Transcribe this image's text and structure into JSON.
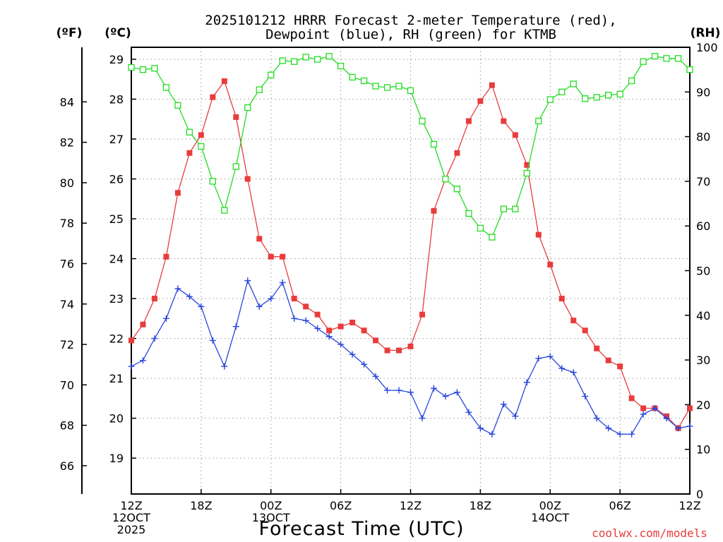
{
  "chart_data": {
    "type": "line",
    "title_lines": [
      "2025101212 HRRR Forecast 2-meter Temperature (red),",
      "Dewpoint (blue), RH (green) for KTMB"
    ],
    "xlabel": "Forecast Time (UTC)",
    "credit": "coolwx.com/models",
    "unit_labels": {
      "fahrenheit": "(ºF)",
      "celsius": "(ºC)",
      "rh": "(RH)"
    },
    "x_range": [
      0,
      48
    ],
    "x_ticks": [
      {
        "x": 0,
        "lines": [
          "12Z",
          "12OCT",
          "2025"
        ]
      },
      {
        "x": 6,
        "lines": [
          "18Z"
        ]
      },
      {
        "x": 12,
        "lines": [
          "00Z",
          "13OCT"
        ]
      },
      {
        "x": 18,
        "lines": [
          "06Z"
        ]
      },
      {
        "x": 24,
        "lines": [
          "12Z"
        ]
      },
      {
        "x": 30,
        "lines": [
          "18Z"
        ]
      },
      {
        "x": 36,
        "lines": [
          "00Z",
          "14OCT"
        ]
      },
      {
        "x": 42,
        "lines": [
          "06Z"
        ]
      },
      {
        "x": 48,
        "lines": [
          "12Z"
        ]
      }
    ],
    "celsius_axis": {
      "range": [
        18.1,
        29.3
      ],
      "ticks": [
        19,
        20,
        21,
        22,
        23,
        24,
        25,
        26,
        27,
        28,
        29
      ]
    },
    "fahrenheit_axis": {
      "range": [
        64.6,
        86.7
      ],
      "ticks": [
        66,
        68,
        70,
        72,
        74,
        76,
        78,
        80,
        82,
        84
      ]
    },
    "rh_axis": {
      "range": [
        0,
        100
      ],
      "ticks": [
        0,
        10,
        20,
        30,
        40,
        50,
        60,
        70,
        80,
        90,
        100
      ]
    },
    "grid": true,
    "colors": {
      "temperature": "#e83c3c",
      "dewpoint": "#2846dc",
      "rh": "#22dd22",
      "credit": "#e83c3c",
      "axis": "#000000",
      "grid": "#999999"
    },
    "series": [
      {
        "key": "temperature",
        "axis": "celsius",
        "marker": "filled-square",
        "values": [
          21.95,
          22.35,
          23.0,
          24.05,
          25.65,
          26.65,
          27.1,
          28.05,
          28.45,
          27.55,
          26.0,
          24.5,
          24.05,
          24.05,
          23.0,
          22.8,
          22.6,
          22.2,
          22.3,
          22.4,
          22.2,
          21.95,
          21.7,
          21.7,
          21.8,
          22.6,
          25.2,
          26.0,
          26.65,
          27.45,
          27.95,
          28.35,
          27.45,
          27.1,
          26.35,
          24.6,
          23.85,
          23.0,
          22.45,
          22.2,
          21.75,
          21.45,
          21.3,
          20.5,
          20.25,
          20.25,
          20.05,
          19.75,
          20.25
        ]
      },
      {
        "key": "dewpoint",
        "axis": "celsius",
        "marker": "plus",
        "values": [
          21.3,
          21.45,
          22.0,
          22.5,
          23.25,
          23.05,
          22.8,
          21.95,
          21.3,
          22.3,
          23.45,
          22.8,
          23.0,
          23.4,
          22.5,
          22.45,
          22.25,
          22.05,
          21.85,
          21.6,
          21.35,
          21.05,
          20.7,
          20.7,
          20.65,
          20.0,
          20.75,
          20.55,
          20.65,
          20.15,
          19.75,
          19.6,
          20.35,
          20.05,
          20.9,
          21.5,
          21.55,
          21.25,
          21.15,
          20.55,
          20.0,
          19.75,
          19.6,
          19.6,
          20.1,
          20.25,
          20.0,
          19.75,
          19.8
        ]
      },
      {
        "key": "rh",
        "axis": "rh",
        "marker": "open-square",
        "values": [
          95.5,
          95.0,
          95.3,
          91.0,
          87.0,
          81.0,
          77.8,
          70.0,
          63.5,
          73.3,
          86.5,
          90.5,
          93.8,
          97.0,
          96.8,
          97.8,
          97.3,
          98.0,
          95.8,
          93.3,
          92.5,
          91.3,
          91.0,
          91.3,
          90.3,
          83.5,
          78.3,
          70.5,
          68.3,
          62.8,
          59.5,
          57.5,
          63.8,
          63.8,
          71.8,
          83.5,
          88.3,
          90.0,
          91.8,
          88.5,
          88.8,
          89.3,
          89.5,
          92.5,
          96.8,
          98.0,
          97.5,
          97.5,
          95.0
        ]
      }
    ]
  }
}
